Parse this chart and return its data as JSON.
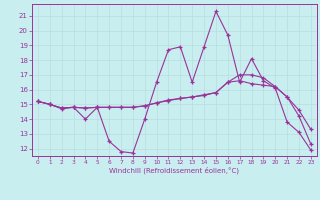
{
  "xlabel": "Windchill (Refroidissement éolien,°C)",
  "xlim": [
    -0.5,
    23.5
  ],
  "ylim": [
    11.5,
    21.8
  ],
  "xticks": [
    0,
    1,
    2,
    3,
    4,
    5,
    6,
    7,
    8,
    9,
    10,
    11,
    12,
    13,
    14,
    15,
    16,
    17,
    18,
    19,
    20,
    21,
    22,
    23
  ],
  "yticks": [
    12,
    13,
    14,
    15,
    16,
    17,
    18,
    19,
    20,
    21
  ],
  "bg_color": "#c8eef0",
  "line_color": "#993399",
  "grid_color": "#b8dede",
  "line1_y": [
    15.2,
    15.0,
    14.7,
    14.8,
    14.0,
    14.8,
    12.5,
    11.8,
    11.7,
    14.0,
    16.5,
    18.7,
    18.9,
    16.5,
    18.9,
    21.3,
    19.7,
    16.5,
    18.1,
    16.6,
    16.1,
    13.8,
    13.1,
    11.9
  ],
  "line2_y": [
    15.2,
    15.0,
    14.75,
    14.8,
    14.75,
    14.8,
    14.8,
    14.8,
    14.8,
    14.9,
    15.1,
    15.3,
    15.4,
    15.5,
    15.6,
    15.8,
    16.5,
    16.6,
    16.4,
    16.3,
    16.2,
    15.5,
    14.6,
    13.3
  ],
  "line3_y": [
    15.2,
    15.0,
    14.75,
    14.8,
    14.75,
    14.8,
    14.8,
    14.8,
    14.8,
    14.9,
    15.1,
    15.25,
    15.4,
    15.5,
    15.65,
    15.8,
    16.5,
    17.0,
    17.0,
    16.8,
    16.2,
    15.5,
    14.2,
    12.3
  ]
}
